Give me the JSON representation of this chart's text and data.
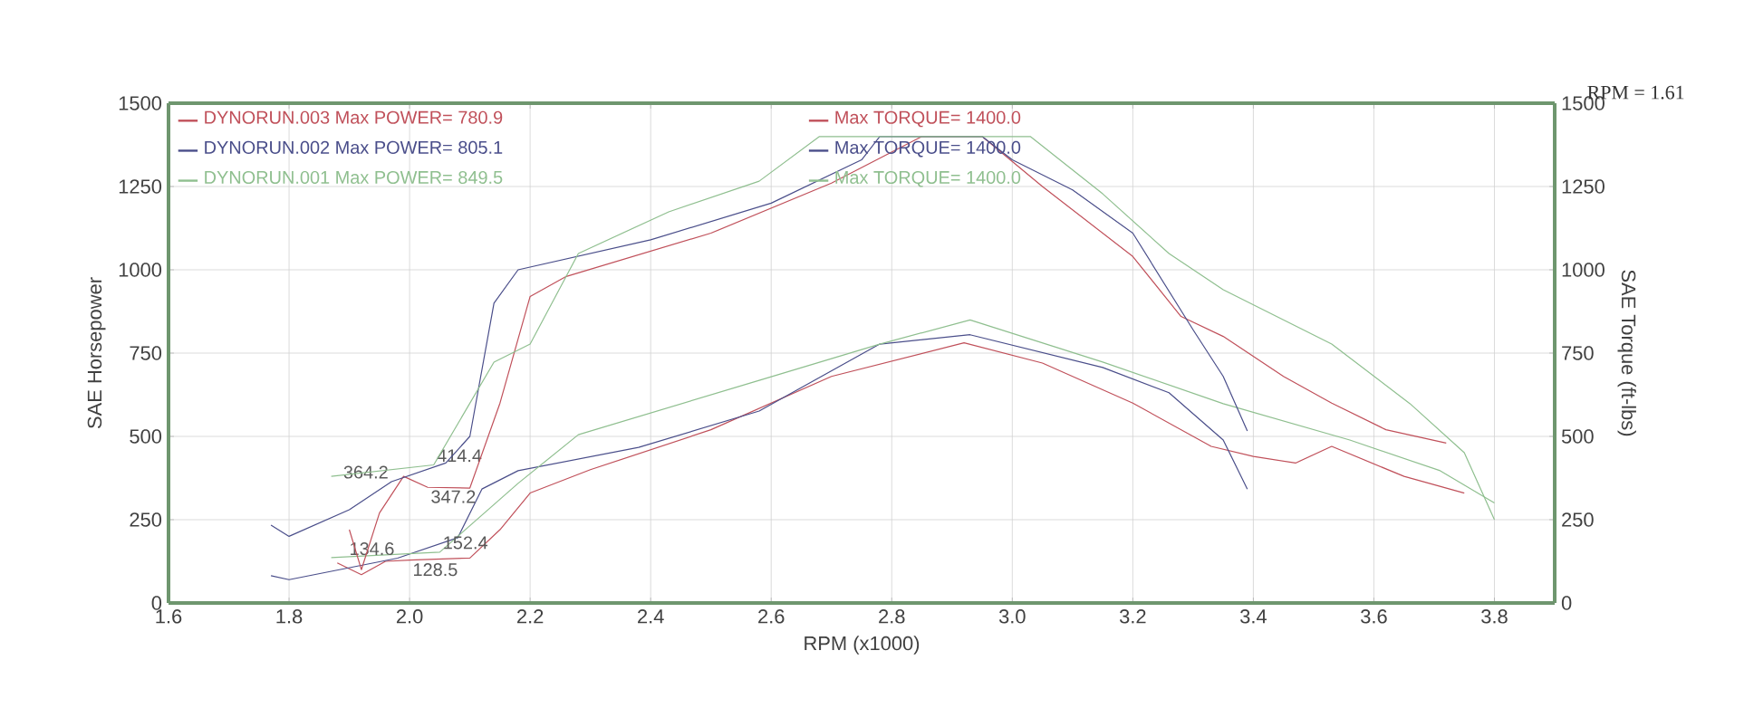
{
  "chart_data": {
    "type": "line",
    "xlabel": "RPM (x1000)",
    "ylabel": "SAE Horsepower",
    "y2label": "SAE Torque (ft-lbs)",
    "xlim": [
      1.6,
      3.9
    ],
    "xticks": [
      {
        "value": 1.6,
        "label": "1.6"
      },
      {
        "value": 1.8,
        "label": "1.8"
      },
      {
        "value": 2.0,
        "label": "2.0"
      },
      {
        "value": 2.2,
        "label": "2.2"
      },
      {
        "value": 2.4,
        "label": "2.4"
      },
      {
        "value": 2.6,
        "label": "2.6"
      },
      {
        "value": 2.8,
        "label": "2.8"
      },
      {
        "value": 3.0,
        "label": "3.0"
      },
      {
        "value": 3.2,
        "label": "3.2"
      },
      {
        "value": 3.4,
        "label": "3.4"
      },
      {
        "value": 3.6,
        "label": "3.6"
      },
      {
        "value": 3.8,
        "label": "3.8"
      }
    ],
    "ylim": [
      0,
      1500
    ],
    "yticks": [
      0,
      250,
      500,
      750,
      1000,
      1250,
      1500
    ],
    "y2lim": [
      0,
      1500
    ],
    "y2ticks": [
      0,
      250,
      500,
      750,
      1000,
      1250,
      1500
    ],
    "grid": true,
    "legend": "top left",
    "marker": "none",
    "line_style": "solid",
    "series": [
      {
        "name": "DYNORUN.003  Max POWER= 780.9",
        "color": "#c0505a",
        "x": [
          1.88,
          1.92,
          1.96,
          2.0,
          2.1,
          2.15,
          2.2,
          2.3,
          2.5,
          2.7,
          2.92,
          3.05,
          3.2,
          3.33,
          3.4,
          3.47,
          3.53,
          3.65,
          3.75
        ],
        "values": [
          120,
          85,
          125,
          128.5,
          135,
          220,
          330,
          400,
          520,
          680,
          780.9,
          720,
          600,
          470,
          440,
          420,
          470,
          380,
          330
        ]
      },
      {
        "name": "Max TORQUE= 1400.0",
        "axis": "y2",
        "color": "#c0505a",
        "x": [
          1.9,
          1.92,
          1.95,
          1.99,
          2.03,
          2.1,
          2.15,
          2.2,
          2.26,
          2.5,
          2.7,
          2.85,
          2.95,
          3.05,
          3.2,
          3.28,
          3.35,
          3.45,
          3.53,
          3.62,
          3.72
        ],
        "values": [
          220,
          100,
          270,
          380,
          347.2,
          345,
          600,
          920,
          980,
          1110,
          1260,
          1400,
          1400,
          1250,
          1040,
          860,
          800,
          680,
          600,
          520,
          480
        ]
      },
      {
        "name": "DYNORUN.002  Max POWER= 805.1",
        "color": "#4a4e8a",
        "x": [
          1.77,
          1.8,
          1.98,
          2.08,
          2.12,
          2.18,
          2.38,
          2.58,
          2.78,
          2.93,
          3.15,
          3.26,
          3.35,
          3.39
        ],
        "values": [
          82,
          70,
          134.6,
          196,
          342,
          397,
          467,
          576,
          777,
          805.1,
          707,
          631,
          489,
          342
        ]
      },
      {
        "name": "Max TORQUE= 1400.0",
        "axis": "y2",
        "color": "#4a4e8a",
        "x": [
          1.77,
          1.8,
          1.9,
          1.97,
          2.06,
          2.1,
          2.14,
          2.18,
          2.4,
          2.6,
          2.75,
          2.78,
          2.95,
          3.0,
          3.1,
          3.2,
          3.3,
          3.35,
          3.39
        ],
        "values": [
          234,
          200,
          280,
          364.2,
          420,
          500,
          900,
          1000,
          1090,
          1200,
          1330,
          1400,
          1400,
          1330,
          1240,
          1110,
          820,
          680,
          516
        ]
      },
      {
        "name": "DYNORUN.001  Max POWER= 849.5",
        "color": "#8fbf8f",
        "x": [
          1.87,
          2.05,
          2.18,
          2.28,
          2.58,
          2.78,
          2.93,
          3.15,
          3.35,
          3.56,
          3.71,
          3.8
        ],
        "values": [
          136,
          152.4,
          359,
          505,
          668,
          777,
          849.5,
          723,
          598,
          489,
          397,
          300
        ]
      },
      {
        "name": "Max TORQUE= 1400.0",
        "axis": "y2",
        "color": "#8fbf8f",
        "x": [
          1.87,
          2.04,
          2.14,
          2.2,
          2.28,
          2.43,
          2.58,
          2.68,
          3.03,
          3.15,
          3.26,
          3.35,
          3.53,
          3.66,
          3.75,
          3.8
        ],
        "values": [
          380,
          414.4,
          723,
          777,
          1049,
          1174,
          1266,
          1400,
          1400,
          1228,
          1049,
          940,
          777,
          598,
          451,
          250
        ]
      }
    ],
    "annotations": [
      {
        "text": "364.2",
        "x": 1.97,
        "y": 364.2
      },
      {
        "text": "414.4",
        "x": 2.04,
        "y": 414.4
      },
      {
        "text": "347.2",
        "x": 2.03,
        "y": 347.2
      },
      {
        "text": "134.6",
        "x": 1.98,
        "y": 134.6
      },
      {
        "text": "152.4",
        "x": 2.05,
        "y": 152.4
      },
      {
        "text": "128.5",
        "x": 2.0,
        "y": 128.5
      },
      "RPM = 1.61"
    ]
  }
}
